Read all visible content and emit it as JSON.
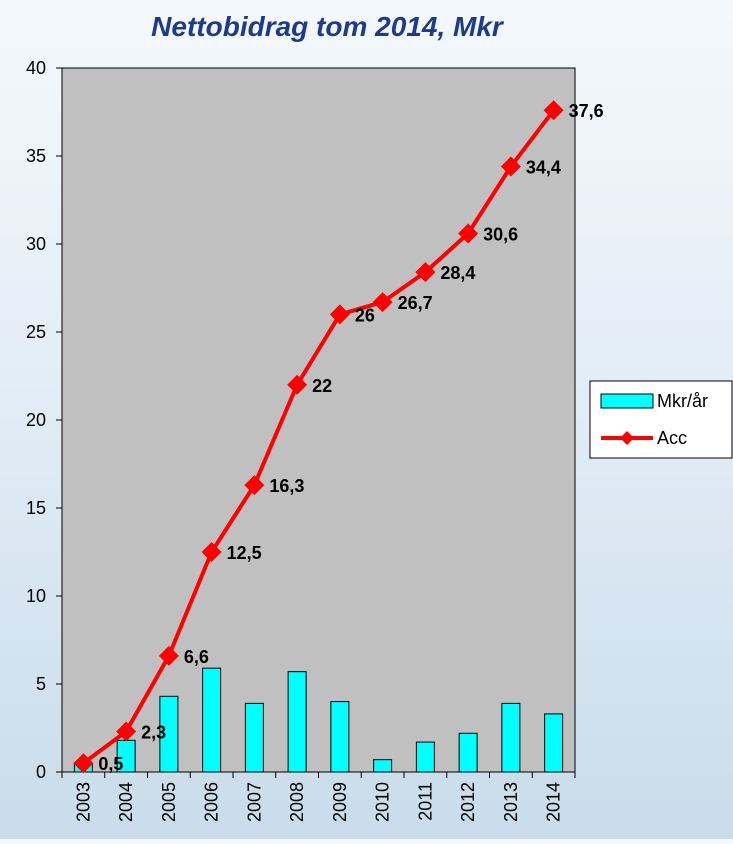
{
  "chart_data": {
    "type": "bar+line",
    "title": "Nettobidrag tom 2014, Mkr",
    "xlabel": "",
    "ylabel": "",
    "categories": [
      "2003",
      "2004",
      "2005",
      "2006",
      "2007",
      "2008",
      "2009",
      "2010",
      "2011",
      "2012",
      "2013",
      "2014"
    ],
    "ylim": [
      0,
      40
    ],
    "yticks": [
      "0",
      "5",
      "10",
      "15",
      "20",
      "25",
      "30",
      "35",
      "40"
    ],
    "series": [
      {
        "name": "Mkr/år",
        "kind": "bar",
        "color": "#00ffff",
        "values": [
          0.5,
          1.8,
          4.3,
          5.9,
          3.9,
          5.7,
          4.0,
          0.7,
          1.7,
          2.2,
          3.9,
          3.3
        ]
      },
      {
        "name": "Acc",
        "kind": "line",
        "marker": "diamond",
        "color": "#ff0000",
        "values": [
          0.5,
          2.3,
          6.6,
          12.5,
          16.3,
          22,
          26,
          26.7,
          28.4,
          30.6,
          34.4,
          37.6
        ],
        "data_labels": [
          "0,5",
          "2,3",
          "6,6",
          "12,5",
          "16,3",
          "22",
          "26",
          "26,7",
          "28,4",
          "30,6",
          "34,4",
          "37,6"
        ]
      }
    ],
    "plot_background": "#c0c0c0",
    "grid": false,
    "legend_position": "right"
  }
}
